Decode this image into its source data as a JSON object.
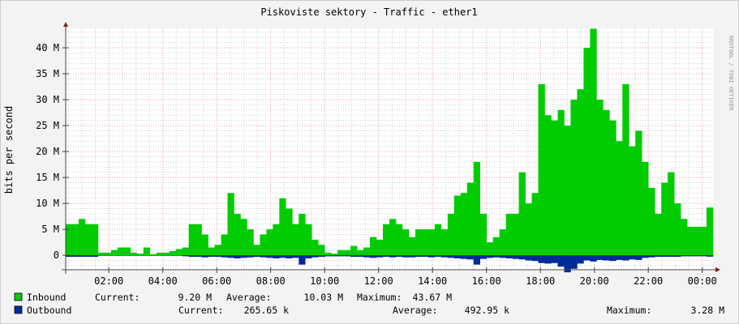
{
  "chart_data": {
    "type": "area",
    "title": "Piskoviste sektory  - Traffic - ether1",
    "ylabel": "bits per second",
    "watermark": "RRDTOOL / TOBI OETIKER",
    "ylim_M": [
      -3.1,
      43.75
    ],
    "y_ticks": [
      {
        "value": 0,
        "label": "0"
      },
      {
        "value": 5,
        "label": "5 M"
      },
      {
        "value": 10,
        "label": "10 M"
      },
      {
        "value": 15,
        "label": "15 M"
      },
      {
        "value": 20,
        "label": "20 M"
      },
      {
        "value": 25,
        "label": "25 M"
      },
      {
        "value": 30,
        "label": "30 M"
      },
      {
        "value": 35,
        "label": "35 M"
      },
      {
        "value": 40,
        "label": "40 M"
      }
    ],
    "x_range_hours": [
      0.4,
      24.4
    ],
    "x_ticks": [
      {
        "hour": 2,
        "label": "02:00"
      },
      {
        "hour": 4,
        "label": "04:00"
      },
      {
        "hour": 6,
        "label": "06:00"
      },
      {
        "hour": 8,
        "label": "08:00"
      },
      {
        "hour": 10,
        "label": "10:00"
      },
      {
        "hour": 12,
        "label": "12:00"
      },
      {
        "hour": 14,
        "label": "14:00"
      },
      {
        "hour": 16,
        "label": "16:00"
      },
      {
        "hour": 18,
        "label": "18:00"
      },
      {
        "hour": 20,
        "label": "20:00"
      },
      {
        "hour": 22,
        "label": "22:00"
      },
      {
        "hour": 24,
        "label": "00:00"
      }
    ],
    "grid": true,
    "x_start_hours": 0.4,
    "x_step_minutes": 14.4,
    "unit": "M bits/s",
    "series": [
      {
        "name": "Inbound",
        "color": "#00cc00",
        "direction": "up",
        "values": [
          6,
          6,
          7,
          6,
          6,
          0.5,
          0.5,
          1,
          1.5,
          1.5,
          0.5,
          0.3,
          1.5,
          0.2,
          0.5,
          0.5,
          0.8,
          1.2,
          1.5,
          6,
          6,
          4,
          1.5,
          2,
          4,
          12,
          8,
          7,
          5,
          2,
          4,
          5,
          6,
          11,
          9,
          6,
          8,
          6,
          3,
          2,
          0.5,
          0.3,
          1,
          1,
          1.8,
          1,
          1.5,
          3.5,
          3,
          6,
          7,
          6,
          5,
          3.5,
          5,
          5,
          5,
          6,
          5,
          8,
          11.5,
          12,
          14,
          18,
          8,
          2.5,
          3.5,
          5,
          8,
          8,
          16,
          10,
          12,
          33,
          27,
          26,
          28,
          25,
          30,
          32,
          40,
          43.67,
          30,
          28,
          26,
          22,
          33,
          21,
          24,
          18,
          13,
          8,
          14,
          16,
          10,
          7,
          5.5,
          5.5,
          5.5,
          9.2
        ]
      },
      {
        "name": "Outbound",
        "color": "#002a97",
        "direction": "down",
        "values": [
          0.3,
          0.3,
          0.3,
          0.3,
          0.3,
          0.1,
          0.1,
          0.1,
          0.1,
          0.1,
          0.1,
          0.1,
          0.1,
          0.1,
          0.1,
          0.1,
          0.1,
          0.1,
          0.2,
          0.3,
          0.3,
          0.4,
          0.3,
          0.3,
          0.4,
          0.5,
          0.6,
          0.5,
          0.4,
          0.3,
          0.4,
          0.5,
          0.6,
          0.5,
          0.6,
          0.5,
          1.8,
          0.6,
          0.4,
          0.3,
          0.2,
          0.2,
          0.2,
          0.2,
          0.3,
          0.3,
          0.4,
          0.5,
          0.4,
          0.3,
          0.4,
          0.3,
          0.4,
          0.4,
          0.3,
          0.3,
          0.4,
          0.3,
          0.4,
          0.5,
          0.6,
          0.7,
          0.8,
          1.8,
          0.7,
          0.5,
          0.4,
          0.5,
          0.6,
          0.7,
          0.8,
          1.0,
          1.1,
          1.5,
          1.6,
          1.5,
          2.2,
          3.28,
          2.6,
          1.6,
          1.0,
          1.2,
          0.9,
          1.0,
          1.1,
          0.9,
          1.0,
          0.8,
          0.9,
          0.5,
          0.4,
          0.3,
          0.3,
          0.3,
          0.3,
          0.2,
          0.2,
          0.2,
          0.2,
          0.27
        ]
      }
    ],
    "legend": {
      "placement": "bottom-left",
      "inbound": {
        "name": "Inbound",
        "current_label": "Current:",
        "current": "9.20 M",
        "average_label": "Average:",
        "average": "10.03 M",
        "maximum_label": "Maximum:",
        "maximum": "43.67 M"
      },
      "outbound": {
        "name": "Outbound",
        "current_label": "Current:",
        "current": "265.65 k",
        "average_label": "Average:",
        "average": "492.95 k",
        "maximum_label": "Maximum:",
        "maximum": "3.28 M"
      }
    }
  }
}
